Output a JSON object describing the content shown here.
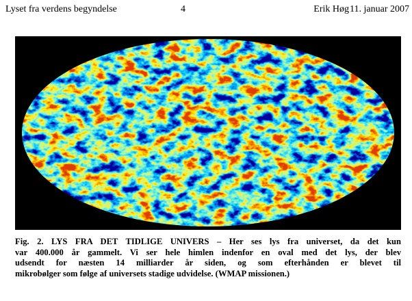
{
  "header": {
    "title": "Lyset fra verdens begyndelse",
    "page": "4",
    "author": "Erik Høg",
    "date": "11. januar 2007"
  },
  "caption": {
    "lines": [
      "Fig. 2.  LYS FRA DET TIDLIGE UNIVERS – Her ses lys fra universet, da det kun",
      "var 400.000 år gammelt. Vi ser hele himlen indenfor en oval med det lys, der blev",
      "udsendt for næsten 14 milliarder år siden, og som efterhånden er blevet til",
      "mikrobølger som følge af universets stadige udvidelse. (WMAP missionen.)",
      ""
    ]
  }
}
